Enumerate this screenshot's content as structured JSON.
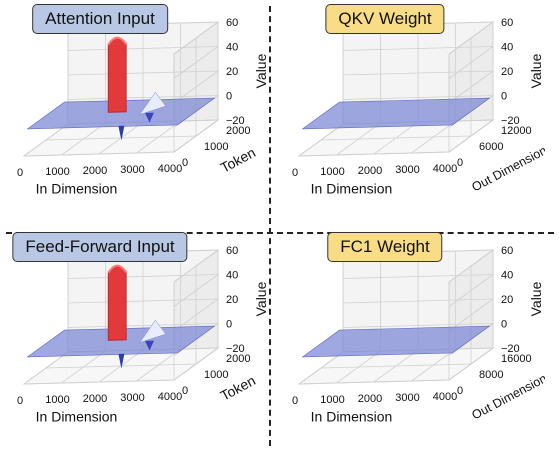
{
  "charts": [
    {
      "id": "p0",
      "title": "Attention Input",
      "badge_color": "#b8c8e4",
      "xlabel": "In Dimension",
      "ylabel": "Token",
      "zlabel": "Value",
      "x_ticks": [
        "0",
        "1000",
        "2000",
        "3000",
        "4000"
      ],
      "y_ticks": [
        "0",
        "1000",
        "2000"
      ],
      "z_ticks": [
        "60",
        "40",
        "20",
        "0",
        "−20"
      ],
      "has_outlier": true
    },
    {
      "id": "p1",
      "title": "QKV Weight",
      "badge_color": "#f8dc86",
      "xlabel": "In Dimension",
      "ylabel": "Out Dimension",
      "zlabel": "Value",
      "x_ticks": [
        "0",
        "1000",
        "2000",
        "3000",
        "4000"
      ],
      "y_ticks": [
        "0",
        "6000",
        "12000"
      ],
      "z_ticks": [
        "60",
        "40",
        "20",
        "0",
        "−20"
      ],
      "has_outlier": false
    },
    {
      "id": "p2",
      "title": "Feed-Forward Input",
      "badge_color": "#b8c8e4",
      "xlabel": "In Dimension",
      "ylabel": "Token",
      "zlabel": "Value",
      "x_ticks": [
        "0",
        "1000",
        "2000",
        "3000",
        "4000"
      ],
      "y_ticks": [
        "0",
        "1000",
        "2000"
      ],
      "z_ticks": [
        "60",
        "40",
        "20",
        "0",
        "−20"
      ],
      "has_outlier": true
    },
    {
      "id": "p3",
      "title": "FC1 Weight",
      "badge_color": "#f8dc86",
      "xlabel": "In Dimension",
      "ylabel": "Out Dimension",
      "zlabel": "Value",
      "x_ticks": [
        "0",
        "1000",
        "2000",
        "3000",
        "4000"
      ],
      "y_ticks": [
        "0",
        "8000",
        "16000"
      ],
      "z_ticks": [
        "60",
        "40",
        "20",
        "0",
        "−20"
      ],
      "has_outlier": false
    }
  ],
  "chart_data": [
    {
      "type": "surface3d",
      "title": "Attention Input",
      "xlabel": "In Dimension",
      "ylabel": "Token",
      "zlabel": "Value",
      "xlim": [
        0,
        4096
      ],
      "ylim": [
        0,
        2048
      ],
      "zlim": [
        -20,
        60
      ],
      "outlier_peak": 60
    },
    {
      "type": "surface3d",
      "title": "QKV Weight",
      "xlabel": "In Dimension",
      "ylabel": "Out Dimension",
      "zlabel": "Value",
      "xlim": [
        0,
        4096
      ],
      "ylim": [
        0,
        12288
      ],
      "zlim": [
        -20,
        60
      ]
    },
    {
      "type": "surface3d",
      "title": "Feed-Forward Input",
      "xlabel": "In Dimension",
      "ylabel": "Token",
      "zlabel": "Value",
      "xlim": [
        0,
        4096
      ],
      "ylim": [
        0,
        2048
      ],
      "zlim": [
        -20,
        60
      ],
      "outlier_peak": 60
    },
    {
      "type": "surface3d",
      "title": "FC1 Weight",
      "xlabel": "In Dimension",
      "ylabel": "Out Dimension",
      "zlabel": "Value",
      "xlim": [
        0,
        4096
      ],
      "ylim": [
        0,
        16384
      ],
      "zlim": [
        -20,
        60
      ]
    }
  ]
}
